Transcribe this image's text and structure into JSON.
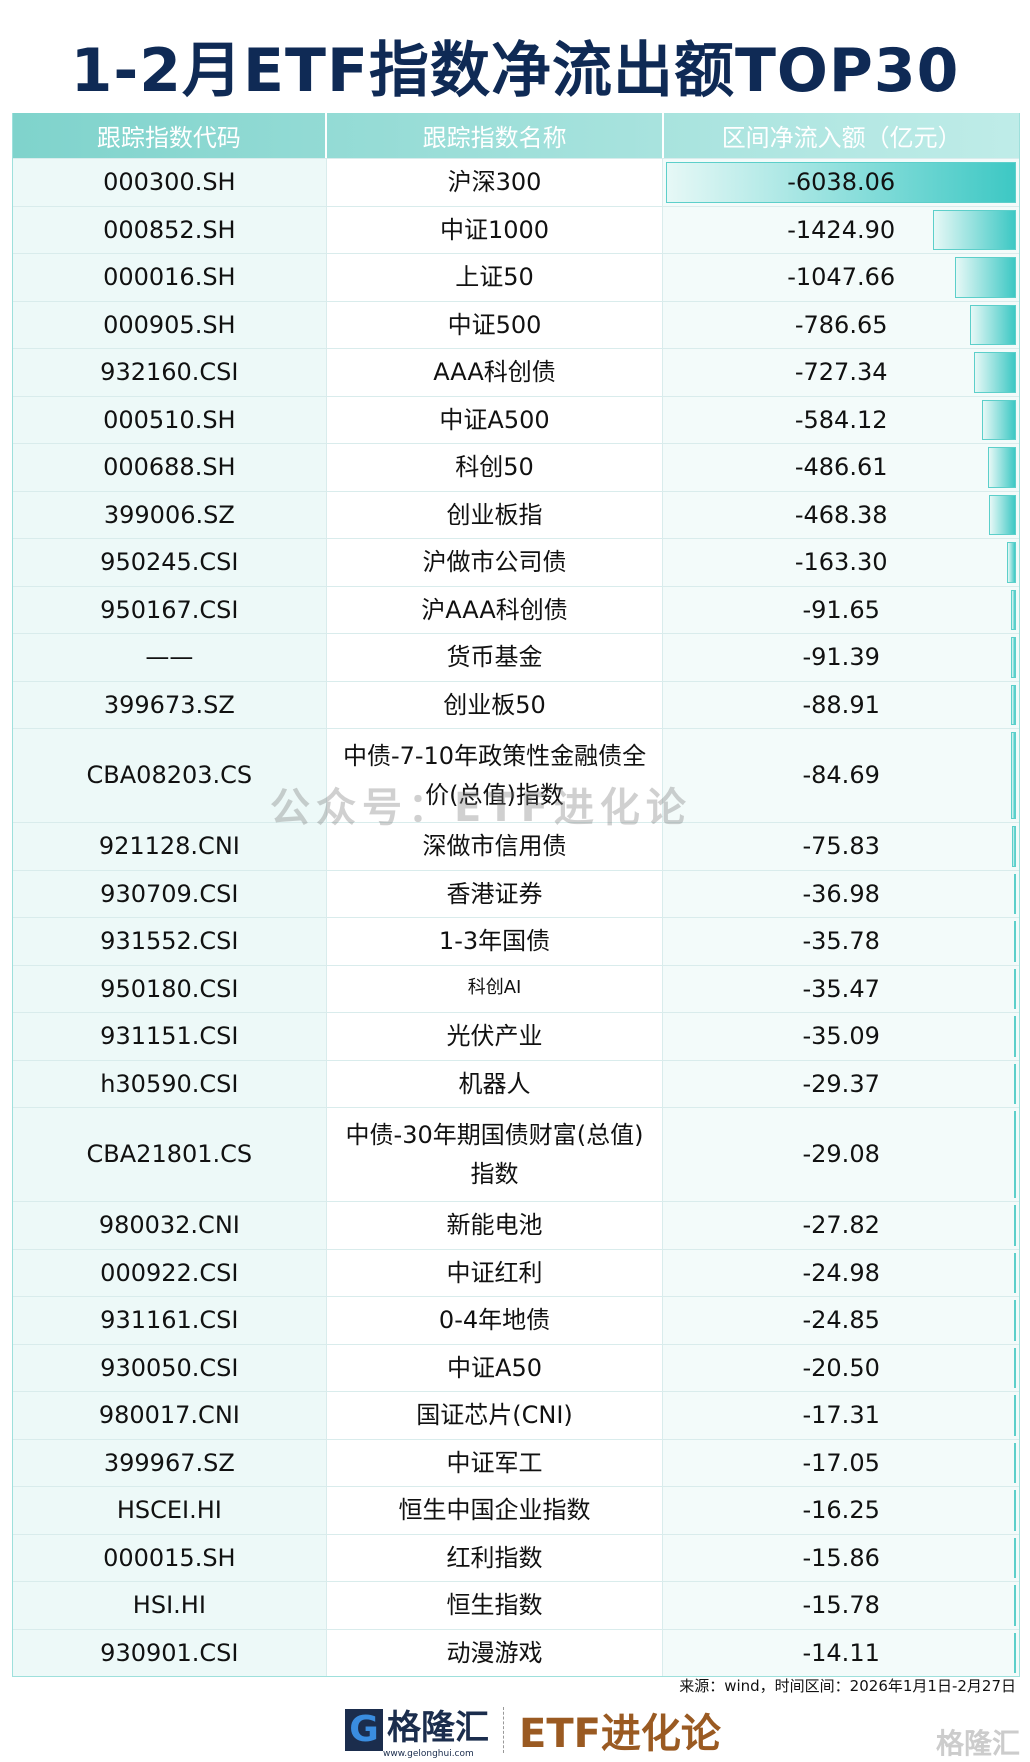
{
  "title": "1-2月ETF指数净流出额TOP30",
  "watermark": "公众号：ETF进化论",
  "source": "来源：wind，时间区间：2026年1月1日-2月27日",
  "logo": {
    "brand": "格隆汇",
    "url": "www.gelonghui.com",
    "channel": "ETF进化论",
    "corner": "格隆汇"
  },
  "colors": {
    "header": "#7fd3cc",
    "bar": "#3dc8c4",
    "title": "#0f2a55"
  },
  "chart_data": {
    "type": "table",
    "columns": [
      "跟踪指数代码",
      "跟踪指数名称",
      "区间净流入额（亿元）"
    ],
    "rows": [
      [
        "000300.SH",
        "沪深300",
        -6038.06
      ],
      [
        "000852.SH",
        "中证1000",
        -1424.9
      ],
      [
        "000016.SH",
        "上证50",
        -1047.66
      ],
      [
        "000905.SH",
        "中证500",
        -786.65
      ],
      [
        "932160.CSI",
        "AAA科创债",
        -727.34
      ],
      [
        "000510.SH",
        "中证A500",
        -584.12
      ],
      [
        "000688.SH",
        "科创50",
        -486.61
      ],
      [
        "399006.SZ",
        "创业板指",
        -468.38
      ],
      [
        "950245.CSI",
        "沪做市公司债",
        -163.3
      ],
      [
        "950167.CSI",
        "沪AAA科创债",
        -91.65
      ],
      [
        "——",
        "货币基金",
        -91.39
      ],
      [
        "399673.SZ",
        "创业板50",
        -88.91
      ],
      [
        "CBA08203.CS",
        "中债-7-10年政策性金融债全价(总值)指数",
        -84.69
      ],
      [
        "921128.CNI",
        "深做市信用债",
        -75.83
      ],
      [
        "930709.CSI",
        "香港证券",
        -36.98
      ],
      [
        "931552.CSI",
        "1-3年国债",
        -35.78
      ],
      [
        "950180.CSI",
        "科创AI",
        -35.47
      ],
      [
        "931151.CSI",
        "光伏产业",
        -35.09
      ],
      [
        "h30590.CSI",
        "机器人",
        -29.37
      ],
      [
        "CBA21801.CS",
        "中债-30年期国债财富(总值)指数",
        -29.08
      ],
      [
        "980032.CNI",
        "新能电池",
        -27.82
      ],
      [
        "000922.CSI",
        "中证红利",
        -24.98
      ],
      [
        "931161.CSI",
        "0-4年地债",
        -24.85
      ],
      [
        "930050.CSI",
        "中证A50",
        -20.5
      ],
      [
        "980017.CNI",
        "国证芯片(CNI)",
        -17.31
      ],
      [
        "399967.SZ",
        "中证军工",
        -17.05
      ],
      [
        "HSCEI.HI",
        "恒生中国企业指数",
        -16.25
      ],
      [
        "000015.SH",
        "红利指数",
        -15.86
      ],
      [
        "HSI.HI",
        "恒生指数",
        -15.78
      ],
      [
        "930901.CSI",
        "动漫游戏",
        -14.11
      ]
    ]
  }
}
